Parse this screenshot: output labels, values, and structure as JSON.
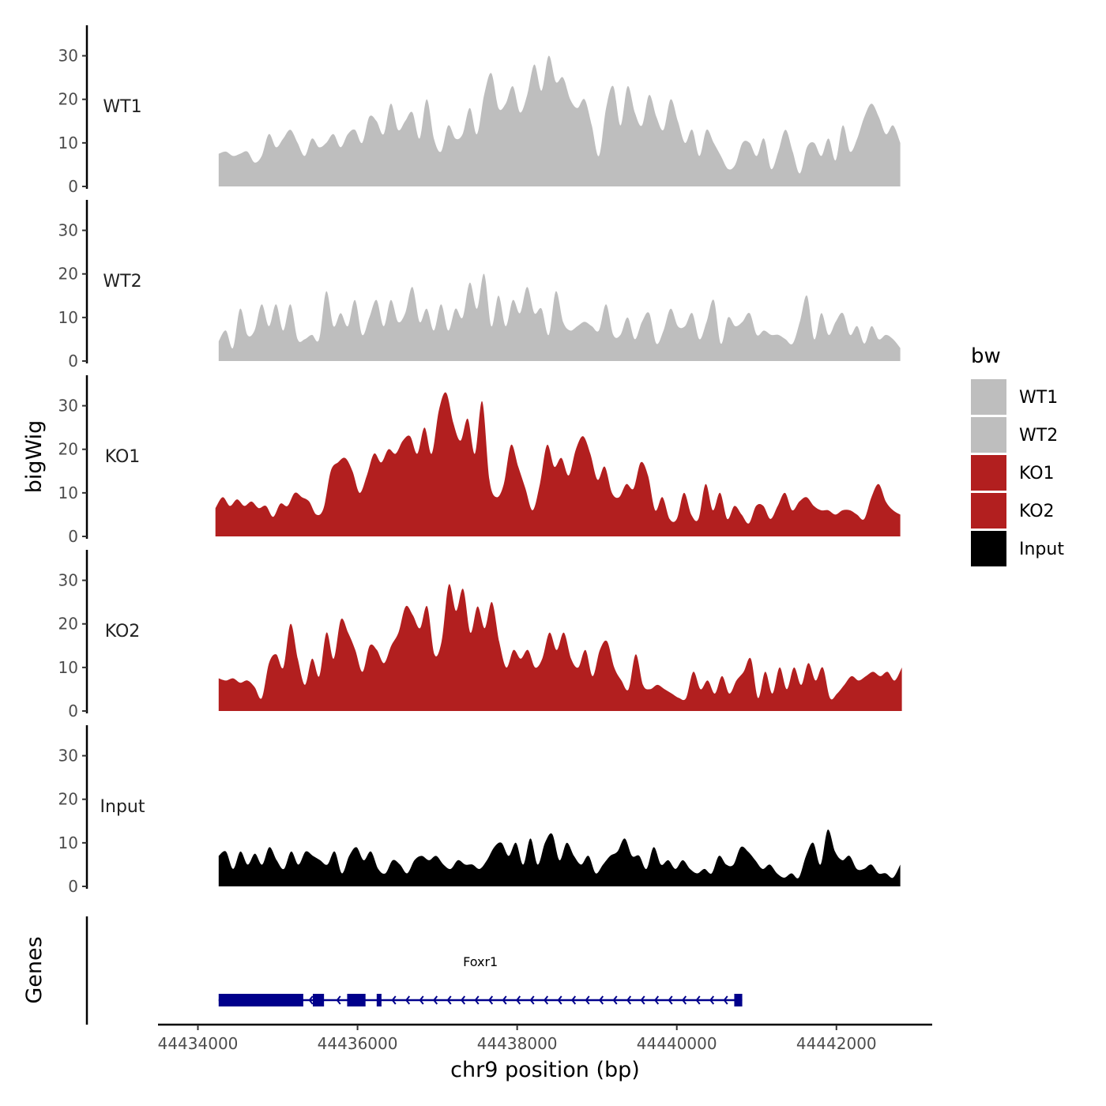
{
  "chart_data": {
    "type": "area",
    "title": "",
    "xlabel": "chr9 position (bp)",
    "ylabel": "bigWig",
    "gene_track_label": "Genes",
    "xlim": [
      44433500,
      44443200
    ],
    "ylim": [
      0,
      37
    ],
    "xticks": [
      44434000,
      44436000,
      44438000,
      44440000,
      44442000
    ],
    "xtick_labels": [
      "44434000",
      "44436000",
      "44438000",
      "44440000",
      "44442000"
    ],
    "yticks": [
      0,
      10,
      20,
      30
    ],
    "ytick_labels": [
      "0",
      "10",
      "20",
      "30"
    ],
    "legend": {
      "title": "bw",
      "position": "right",
      "entries": [
        {
          "label": "WT1",
          "color": "#bebebe"
        },
        {
          "label": "WT2",
          "color": "#bebebe"
        },
        {
          "label": "KO1",
          "color": "#b21f1f"
        },
        {
          "label": "KO2",
          "color": "#b21f1f"
        },
        {
          "label": "Input",
          "color": "#000000"
        }
      ]
    },
    "series": [
      {
        "name": "WT1",
        "color": "#bebebe",
        "x_start": 44434260,
        "x_end": 44442800,
        "values": [
          7.5,
          8,
          7,
          7.5,
          8,
          5.5,
          7,
          12,
          9,
          11,
          13,
          10,
          7,
          11,
          9,
          10,
          12,
          9,
          12,
          13,
          10,
          16,
          15,
          12,
          19,
          13,
          15,
          17,
          11,
          20,
          11,
          8,
          14,
          11,
          12,
          18,
          12,
          21,
          26,
          18,
          19,
          23,
          17,
          21,
          28,
          22,
          30,
          24,
          25,
          20,
          18,
          20,
          14,
          7,
          18,
          23,
          14,
          23,
          17,
          14,
          21,
          16,
          13,
          20,
          15,
          10,
          13,
          7,
          13,
          10,
          7,
          4,
          5,
          10,
          10,
          7,
          11,
          4,
          8,
          13,
          8,
          3,
          9,
          10,
          7,
          11,
          6,
          14,
          8,
          11,
          16,
          19,
          16,
          12,
          14,
          10
        ]
      },
      {
        "name": "WT2",
        "color": "#bebebe",
        "x_start": 44434260,
        "x_end": 44442800,
        "values": [
          4.5,
          7,
          3,
          12,
          6,
          7,
          13,
          8,
          13,
          7,
          13,
          5,
          5,
          6,
          5,
          16,
          8,
          11,
          8,
          14,
          6,
          10,
          14,
          8,
          14,
          9,
          11,
          17,
          9,
          12,
          7,
          13,
          7,
          12,
          10,
          18,
          12,
          20,
          8,
          15,
          8,
          14,
          11,
          17,
          11,
          12,
          6,
          16,
          9,
          7,
          8,
          9,
          8,
          7,
          13,
          6,
          6,
          10,
          5,
          9,
          11,
          4,
          7,
          12,
          8,
          8,
          11,
          5,
          9,
          14,
          4,
          10,
          8,
          9,
          11,
          6,
          7,
          6,
          6,
          5,
          4,
          9,
          15,
          5,
          11,
          6,
          9,
          11,
          6,
          8,
          4,
          8,
          5,
          6,
          5,
          3
        ]
      },
      {
        "name": "KO1",
        "color": "#b21f1f",
        "x_start": 44434220,
        "x_end": 44442800,
        "values": [
          6.5,
          9,
          7,
          8.5,
          7,
          8,
          6.5,
          7,
          4.5,
          7.5,
          7,
          10,
          9,
          8,
          5,
          6.5,
          15,
          17,
          18,
          15,
          10,
          14,
          19,
          17,
          20,
          19,
          22,
          23,
          19,
          25,
          19,
          29,
          33,
          26,
          22,
          27,
          19,
          31,
          13,
          9,
          12,
          21,
          16,
          11,
          6,
          12,
          21,
          16,
          18,
          14,
          20,
          23,
          19,
          13,
          16,
          10,
          9,
          12,
          11,
          17,
          14,
          6,
          9,
          4,
          4,
          10,
          5,
          4,
          12,
          6,
          10,
          4,
          7,
          5,
          3,
          7,
          7,
          4,
          7,
          10,
          6,
          8,
          9,
          7,
          6,
          6,
          5,
          6,
          6,
          5,
          4,
          9,
          12,
          8,
          6,
          5
        ]
      },
      {
        "name": "KO2",
        "color": "#b21f1f",
        "x_start": 44434260,
        "x_end": 44442820,
        "values": [
          7.5,
          7,
          7.5,
          6.5,
          7,
          5.5,
          3,
          11,
          13,
          10,
          20,
          12,
          6,
          12,
          8,
          18,
          12,
          21,
          18,
          14,
          9,
          15,
          14,
          11,
          15,
          18,
          24,
          22,
          19,
          24,
          13,
          16,
          29,
          23,
          28,
          18,
          24,
          19,
          25,
          16,
          10,
          14,
          12,
          14,
          10,
          12,
          18,
          14,
          18,
          12,
          10,
          14,
          8,
          14,
          16,
          10,
          7,
          5,
          13,
          6,
          5,
          6,
          5,
          4,
          3,
          3,
          9,
          5,
          7,
          4,
          8,
          4,
          7,
          9,
          12,
          3,
          9,
          4,
          10,
          5,
          10,
          6,
          11,
          7,
          10,
          3,
          4,
          6,
          8,
          7,
          8,
          9,
          8,
          9,
          7,
          10
        ]
      },
      {
        "name": "Input",
        "color": "#000000",
        "x_start": 44434260,
        "x_end": 44442800,
        "values": [
          7,
          8,
          4,
          8,
          5,
          7.5,
          5,
          9,
          6,
          4,
          8,
          5,
          8,
          7,
          6,
          5,
          8,
          3,
          7,
          9,
          6,
          8,
          4,
          3,
          6,
          5,
          3,
          6,
          7,
          6,
          7,
          5,
          4,
          6,
          5,
          5,
          4,
          6,
          9,
          10,
          7,
          10,
          5,
          11,
          5,
          10,
          12,
          6,
          10,
          7,
          5,
          7,
          3,
          5,
          7,
          8,
          11,
          7,
          7,
          4,
          9,
          5,
          6,
          4,
          6,
          4,
          3,
          4,
          3,
          7,
          5,
          5,
          9,
          8,
          6,
          4,
          5,
          3,
          2,
          3,
          2,
          7,
          10,
          5,
          13,
          8,
          6,
          7,
          4,
          4,
          5,
          3,
          3,
          2,
          5
        ]
      }
    ],
    "genes": [
      {
        "name": "Foxr1",
        "strand": "-",
        "start": 44434260,
        "end": 44440820,
        "exons": [
          [
            44434260,
            44435320
          ],
          [
            44435440,
            44435580
          ],
          [
            44435870,
            44436100
          ],
          [
            44436240,
            44436300
          ],
          [
            44440720,
            44440820
          ]
        ]
      }
    ]
  }
}
